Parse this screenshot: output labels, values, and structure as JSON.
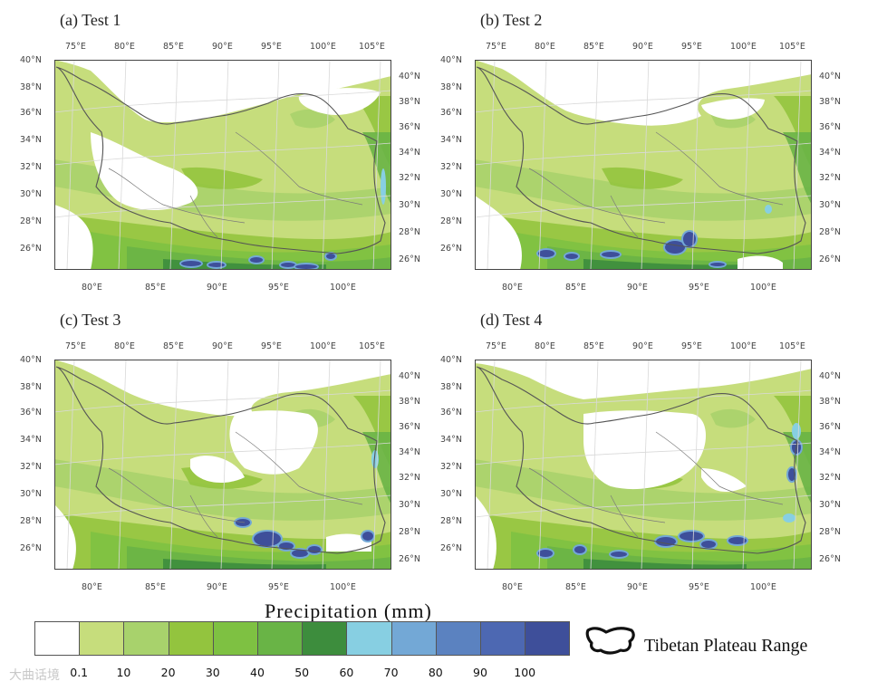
{
  "panels": [
    {
      "title": "(a) Test 1"
    },
    {
      "title": "(b) Test 2"
    },
    {
      "title": "(c) Test 3"
    },
    {
      "title": "(d) Test 4"
    }
  ],
  "axes": {
    "top_lon": [
      "75°E",
      "80°E",
      "85°E",
      "90°E",
      "95°E",
      "100°E",
      "105°E"
    ],
    "bottom_lon": [
      "80°E",
      "85°E",
      "90°E",
      "95°E",
      "100°E"
    ],
    "left_lat": [
      "40°N",
      "38°N",
      "36°N",
      "34°N",
      "32°N",
      "30°N",
      "28°N",
      "26°N"
    ],
    "right_lat": [
      "40°N",
      "38°N",
      "36°N",
      "34°N",
      "32°N",
      "30°N",
      "28°N",
      "26°N"
    ]
  },
  "colorbar": {
    "title": "Precipitation  (mm)",
    "colors": [
      "#ffffff",
      "#c6dd7c",
      "#a8d26c",
      "#93c43e",
      "#7ec142",
      "#69b446",
      "#3d8d3d",
      "#87cfe2",
      "#73a8d6",
      "#5b82c0",
      "#4d68b2",
      "#3e4f9a"
    ],
    "ticks": [
      "0.1",
      "10",
      "20",
      "30",
      "40",
      "50",
      "60",
      "70",
      "80",
      "90",
      "100"
    ]
  },
  "legend": {
    "label": "Tibetan Plateau Range"
  },
  "watermark": "大曲话境"
}
